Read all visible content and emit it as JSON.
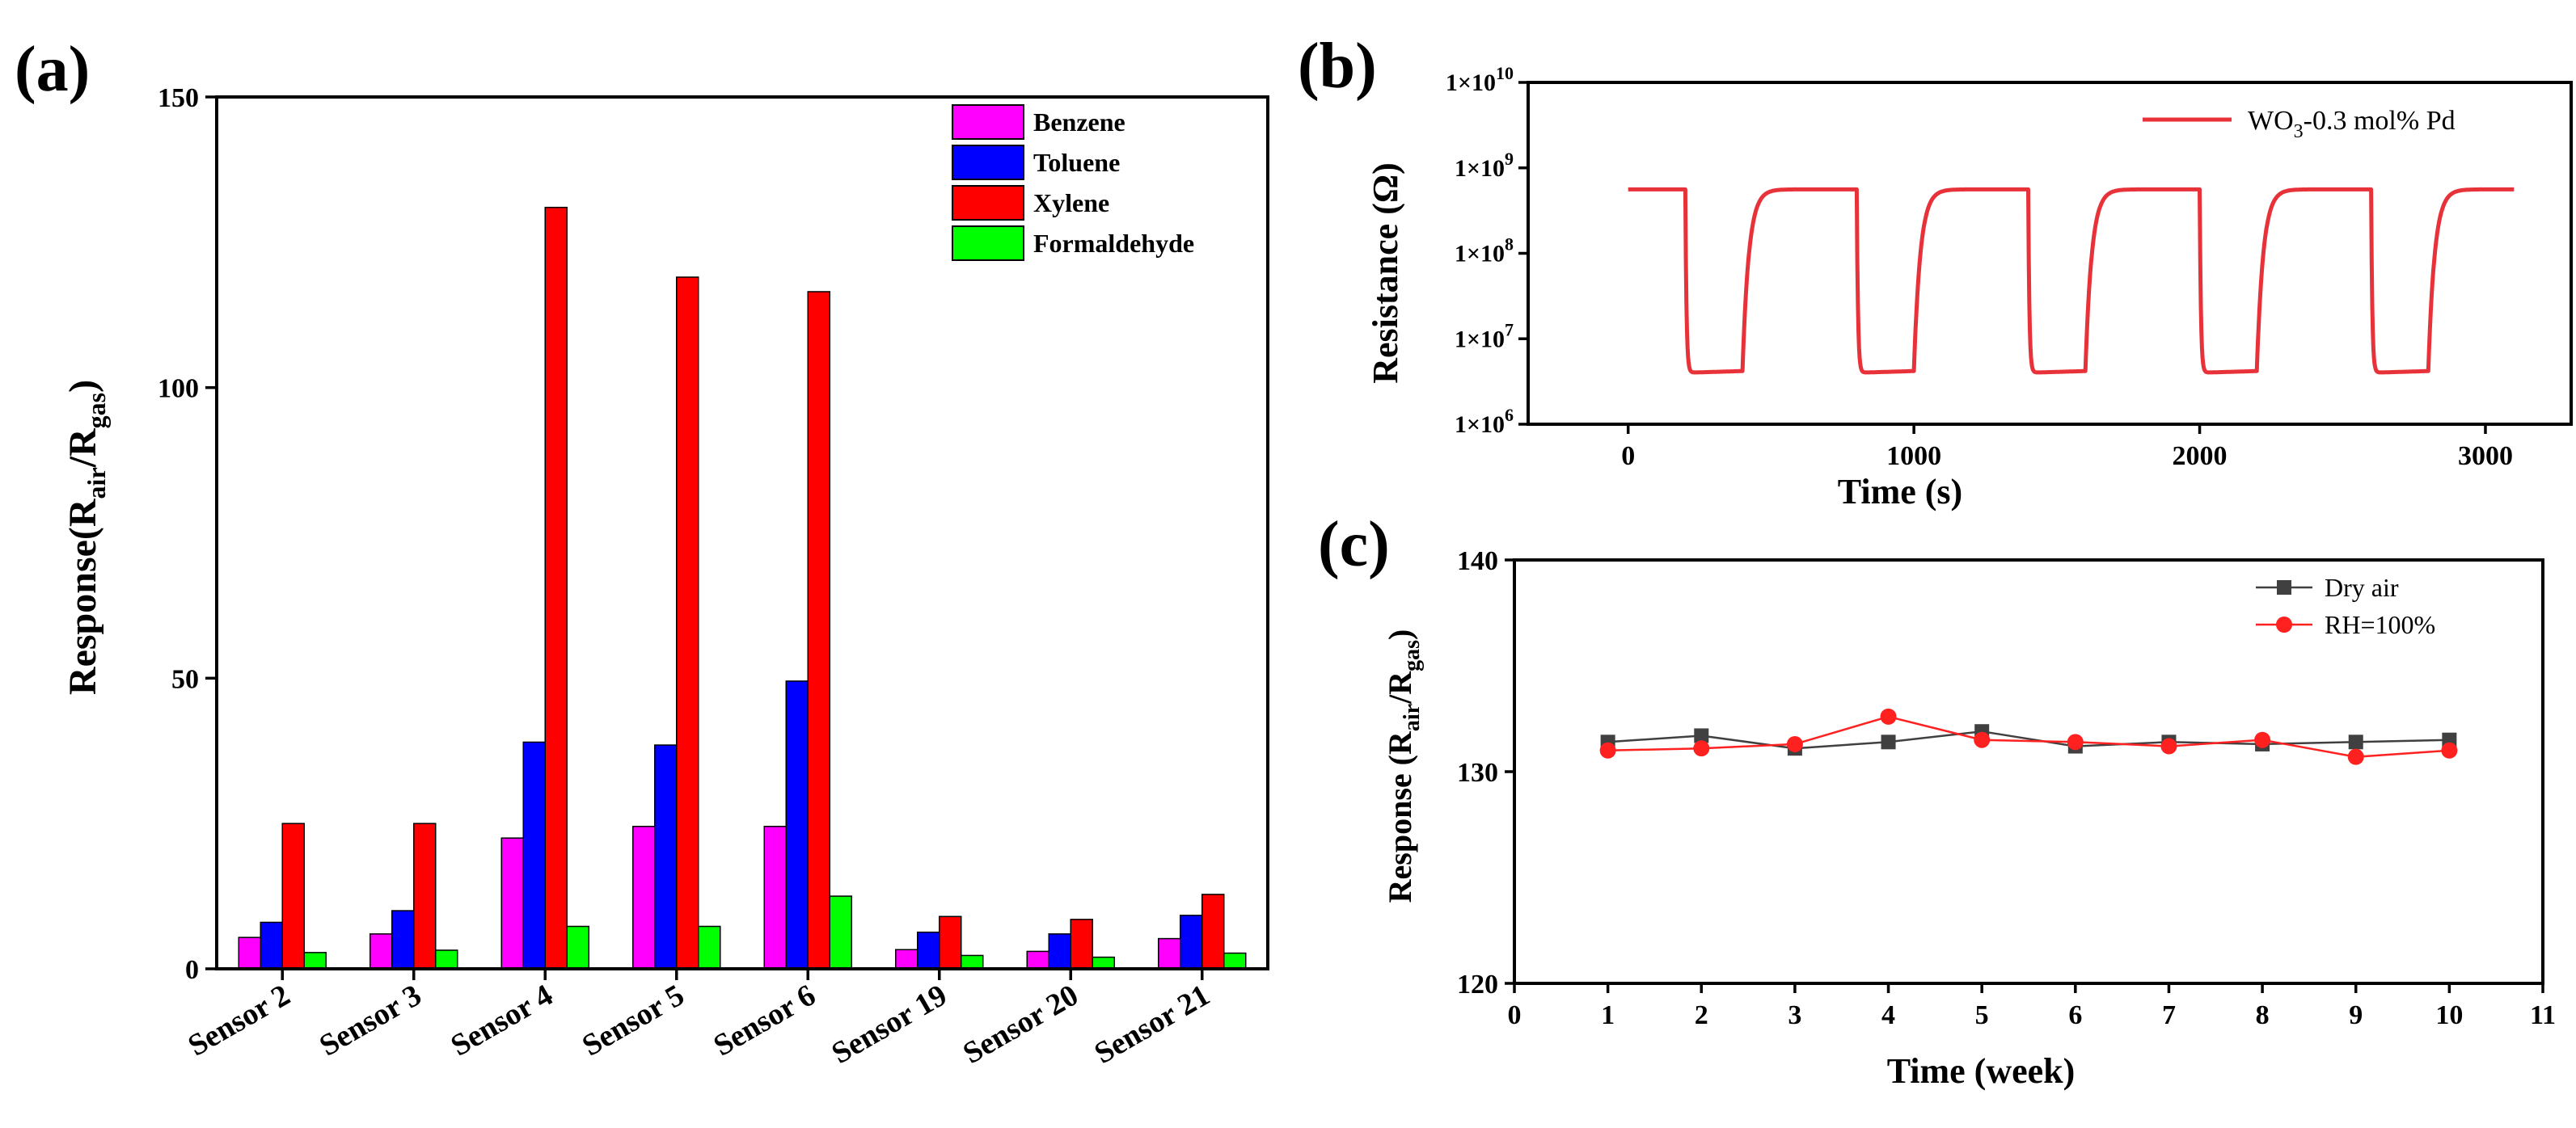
{
  "chart_data": [
    {
      "panel": "(a)",
      "type": "bar",
      "categories": [
        "Sensor 2",
        "Sensor 3",
        "Sensor 4",
        "Sensor 5",
        "Sensor 6",
        "Sensor 19",
        "Sensor 20",
        "Sensor 21"
      ],
      "series": [
        {
          "name": "Benzene",
          "color": "#ff00ff",
          "values": [
            5.4,
            6.0,
            22.5,
            24.5,
            24.5,
            3.3,
            3.0,
            5.2
          ]
        },
        {
          "name": "Toluene",
          "color": "#0000ff",
          "values": [
            8.0,
            10.0,
            39.0,
            38.5,
            49.5,
            6.3,
            6.0,
            9.2
          ]
        },
        {
          "name": "Xylene",
          "color": "#ff0000",
          "values": [
            25.0,
            25.0,
            131.0,
            119.0,
            116.5,
            9.0,
            8.5,
            12.8
          ]
        },
        {
          "name": "Formaldehyde",
          "color": "#00ff00",
          "values": [
            2.8,
            3.2,
            7.3,
            7.3,
            12.5,
            2.3,
            2.0,
            2.7
          ]
        }
      ],
      "yticks": [
        "0",
        "50",
        "100",
        "150"
      ],
      "ylim": [
        0,
        150
      ],
      "ylabel": {
        "main": "Response(R",
        "sub1": "air",
        "mid": "/R",
        "sub2": "gas",
        "end": ")"
      },
      "legend_position": "top-right"
    },
    {
      "panel": "(b)",
      "type": "line",
      "xlabel": "Time (s)",
      "ylabel": "Resistance (Ω)",
      "xticks": [
        "0",
        "1000",
        "2000",
        "3000"
      ],
      "xlim": [
        -350,
        3300
      ],
      "ylim_log10": [
        6,
        10
      ],
      "yticks": [
        {
          "base": "1×10",
          "exp": "6"
        },
        {
          "base": "1×10",
          "exp": "7"
        },
        {
          "base": "1×10",
          "exp": "8"
        },
        {
          "base": "1×10",
          "exp": "9"
        },
        {
          "base": "1×10",
          "exp": "10"
        }
      ],
      "series_name": {
        "prefix": "WO",
        "sub": "3",
        "suffix": "-0.3 mol% Pd"
      },
      "color": "#e8323a",
      "baseline_ohm": 560000000,
      "gas_ohm": 4000000,
      "gas_in_times": [
        200,
        800,
        1400,
        2000,
        2600
      ],
      "gas_out_times": [
        400,
        1000,
        1600,
        2200,
        2800
      ],
      "x_start": 0,
      "x_end": 3100,
      "legend_position": "top-right"
    },
    {
      "panel": "(c)",
      "type": "line",
      "xlabel": "Time (week)",
      "ylabel": {
        "main": "Response (R",
        "sub1": "air",
        "mid": "/R",
        "sub2": "gas",
        "end": ")"
      },
      "xticks": [
        "0",
        "1",
        "2",
        "3",
        "4",
        "5",
        "6",
        "7",
        "8",
        "9",
        "10",
        "11"
      ],
      "xlim": [
        0,
        11
      ],
      "yticks": [
        "120",
        "130",
        "140"
      ],
      "ylim": [
        120,
        140
      ],
      "x": [
        1,
        2,
        3,
        4,
        5,
        6,
        7,
        8,
        9,
        10
      ],
      "series": [
        {
          "name": "Dry air",
          "color": "#404040",
          "marker": "square",
          "values": [
            131.4,
            131.7,
            131.1,
            131.4,
            131.9,
            131.2,
            131.4,
            131.3,
            131.4,
            131.5
          ]
        },
        {
          "name": "RH=100%",
          "color": "#ff2020",
          "marker": "circle",
          "values": [
            131.0,
            131.1,
            131.3,
            132.6,
            131.5,
            131.4,
            131.2,
            131.5,
            130.7,
            131.0
          ]
        }
      ],
      "legend_position": "top-right"
    }
  ]
}
